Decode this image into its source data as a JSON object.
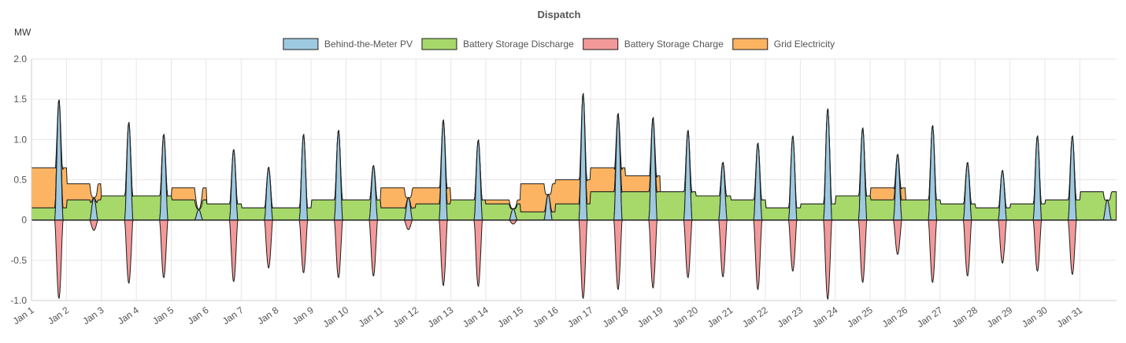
{
  "chart_data": {
    "type": "area",
    "title": "Dispatch",
    "ylabel": "MW",
    "xlabel": "",
    "ylim": [
      -1.0,
      2.0
    ],
    "y_ticks": [
      "-1.0",
      "-0.5",
      "0",
      "0.5",
      "1.0",
      "1.5",
      "2.0"
    ],
    "y_tick_values": [
      -1.0,
      -0.5,
      0,
      0.5,
      1.0,
      1.5,
      2.0
    ],
    "x_ticks": [
      "Jan 1",
      "Jan 2",
      "Jan 3",
      "Jan 4",
      "Jan 5",
      "Jan 6",
      "Jan 7",
      "Jan 8",
      "Jan 9",
      "Jan 10",
      "Jan 11",
      "Jan 12",
      "Jan 13",
      "Jan 14",
      "Jan 15",
      "Jan 16",
      "Jan 17",
      "Jan 18",
      "Jan 19",
      "Jan 20",
      "Jan 21",
      "Jan 22",
      "Jan 23",
      "Jan 24",
      "Jan 25",
      "Jan 26",
      "Jan 27",
      "Jan 28",
      "Jan 29",
      "Jan 30",
      "Jan 31"
    ],
    "x_tick_days": [
      1,
      2,
      3,
      4,
      5,
      6,
      7,
      8,
      9,
      10,
      11,
      12,
      13,
      14,
      15,
      16,
      17,
      18,
      19,
      20,
      21,
      22,
      23,
      24,
      25,
      26,
      27,
      28,
      29,
      30,
      31
    ],
    "xlim_days": [
      1,
      32.05
    ],
    "stacked": true,
    "legend_position": "top",
    "grid": true,
    "series": [
      {
        "name": "Behind-the-Meter PV",
        "color": "#9ecae1"
      },
      {
        "name": "Battery Storage Discharge",
        "color": "#a6d96a"
      },
      {
        "name": "Battery Storage Charge",
        "color": "#f4999a"
      },
      {
        "name": "Grid Electricity",
        "color": "#fdb462"
      }
    ],
    "daily_profile": {
      "day": [
        1,
        2,
        3,
        4,
        5,
        6,
        7,
        8,
        9,
        10,
        11,
        12,
        13,
        14,
        15,
        16,
        17,
        18,
        19,
        20,
        21,
        22,
        23,
        24,
        25,
        26,
        27,
        28,
        29,
        30,
        31
      ],
      "pv_peak_mw": [
        1.5,
        0.28,
        1.22,
        1.07,
        0.13,
        0.88,
        0.66,
        1.07,
        1.12,
        0.68,
        0.28,
        1.25,
        1.0,
        0.14,
        0.32,
        1.58,
        1.33,
        1.28,
        1.12,
        0.72,
        0.96,
        1.05,
        1.39,
        1.15,
        0.82,
        1.18,
        0.72,
        0.62,
        1.05,
        1.05,
        0.25
      ],
      "charge_min_mw": [
        -0.98,
        -0.13,
        -0.79,
        -0.72,
        0.0,
        -0.77,
        -0.6,
        -0.66,
        -0.72,
        -0.7,
        -0.12,
        -0.82,
        -0.83,
        -0.05,
        0.0,
        -0.98,
        -0.87,
        -0.85,
        -0.72,
        -0.71,
        -0.87,
        -0.64,
        -0.99,
        -0.78,
        -0.43,
        -0.78,
        -0.7,
        -0.54,
        -0.64,
        -0.68,
        0.0
      ],
      "battery_discharge_mw": [
        0.15,
        0.25,
        0.3,
        0.3,
        0.25,
        0.2,
        0.15,
        0.15,
        0.25,
        0.25,
        0.15,
        0.2,
        0.25,
        0.2,
        0.1,
        0.2,
        0.35,
        0.35,
        0.35,
        0.3,
        0.25,
        0.15,
        0.2,
        0.3,
        0.25,
        0.25,
        0.2,
        0.15,
        0.2,
        0.25,
        0.35
      ],
      "grid_mw": [
        0.5,
        0.2,
        0.0,
        0.0,
        0.15,
        0.0,
        0.0,
        0.0,
        0.0,
        0.0,
        0.25,
        0.2,
        0.0,
        0.05,
        0.35,
        0.3,
        0.3,
        0.2,
        0.0,
        0.0,
        0.0,
        0.0,
        0.0,
        0.0,
        0.15,
        0.0,
        0.0,
        0.0,
        0.0,
        0.0,
        0.0
      ]
    }
  }
}
